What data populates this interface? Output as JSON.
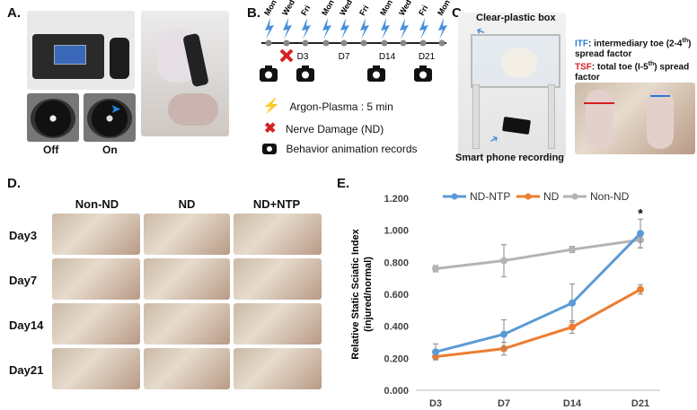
{
  "panels": {
    "a": {
      "label": "A.",
      "off_label": "Off",
      "on_label": "On"
    },
    "b": {
      "label": "B.",
      "days": [
        "Mon",
        "Wed",
        "Fri",
        "Mon",
        "Wed",
        "Fri",
        "Mon",
        "Wed",
        "Fri",
        "Mon"
      ],
      "timepoints": [
        "D3",
        "D7",
        "D14",
        "D21"
      ],
      "legend": {
        "plasma": "Argon-Plasma : 5 min",
        "nd": "Nerve Damage (ND)",
        "records": "Behavior animation records"
      },
      "colors": {
        "bolt": "#4a90d9",
        "cross": "#d62020",
        "timeline": "#222222"
      }
    },
    "c": {
      "label": "C.",
      "box_label": "Clear-plastic box",
      "phone_label": "Smart phone recording",
      "itf_abbr": "ITF",
      "itf_text": ": intermediary toe (2-4",
      "itf_sup": "th",
      "itf_text2": ")",
      "itf_text3": "spread factor",
      "tsf_abbr": "TSF",
      "tsf_text": ": total toe (I-5",
      "tsf_sup": "th",
      "tsf_text2": ") spread",
      "tsf_text3": "factor",
      "colors": {
        "itf": "#2a7bd0",
        "tsf": "#d62020"
      }
    },
    "d": {
      "label": "D.",
      "columns": [
        "Non-ND",
        "ND",
        "ND+NTP"
      ],
      "rows": [
        "Day3",
        "Day7",
        "Day14",
        "Day21"
      ]
    },
    "e": {
      "label": "E."
    }
  },
  "chart_data": {
    "type": "line",
    "categories": [
      "D3",
      "D7",
      "D14",
      "D21"
    ],
    "ylabel": "Relative Static Sciatic Index",
    "ylabel2": "(injured/normal)",
    "ylim": [
      0,
      1.2
    ],
    "yticks": [
      "0.000",
      "0.200",
      "0.400",
      "0.600",
      "0.800",
      "1.000",
      "1.200"
    ],
    "annotation": "*",
    "series": [
      {
        "name": "ND-NTP",
        "color": "#5b9bd5",
        "values": [
          0.24,
          0.35,
          0.545,
          0.98
        ],
        "errors": [
          0.05,
          0.09,
          0.12,
          0.09
        ]
      },
      {
        "name": "ND",
        "color": "#ed7d31",
        "values": [
          0.21,
          0.26,
          0.395,
          0.63
        ],
        "errors": [
          0.02,
          0.04,
          0.04,
          0.03
        ]
      },
      {
        "name": "Non-ND",
        "color": "#b4b4b4",
        "values": [
          0.76,
          0.81,
          0.88,
          0.94
        ],
        "errors": [
          0.02,
          0.1,
          0.02,
          0.05
        ]
      }
    ]
  }
}
